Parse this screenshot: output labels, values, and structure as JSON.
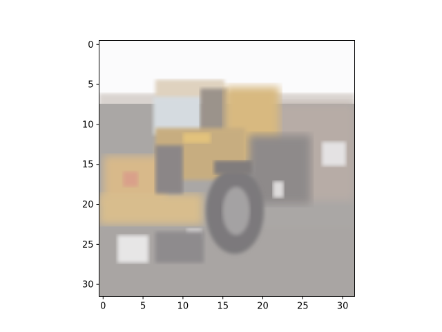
{
  "figure": {
    "x_ticks": [
      "0",
      "5",
      "10",
      "15",
      "20",
      "25",
      "30"
    ],
    "y_ticks": [
      "0",
      "5",
      "10",
      "15",
      "20",
      "25",
      "30"
    ],
    "grid_cols": 32,
    "grid_rows": 32
  },
  "image": {
    "subject": "blurred low-resolution photo of a yellow wheel loader / construction vehicle on gravel",
    "colors": {
      "sky": "#fbfbfc",
      "ground": "#a9a6a4",
      "vehicle_yellow": "#d9b774",
      "vehicle_dark": "#7d7b7c",
      "window": "#d6dde3"
    }
  }
}
